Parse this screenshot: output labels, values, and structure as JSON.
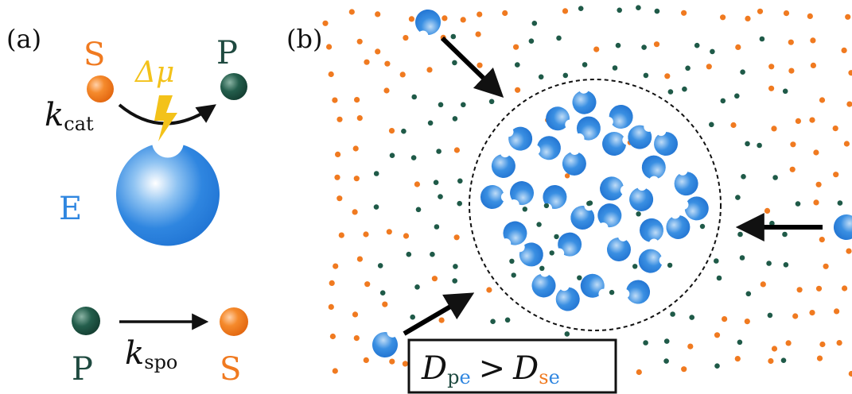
{
  "panel_a": {
    "label": "(a)",
    "substrate_label": "S",
    "product_label": "P",
    "enzyme_label": "E",
    "energy_label": "Δμ",
    "kcat_main": "k",
    "kcat_sub": "cat",
    "bottom_product_label": "P",
    "bottom_substrate_label": "S",
    "kspo_main": "k",
    "kspo_sub": "spo"
  },
  "panel_b": {
    "label": "(b)",
    "inequality": {
      "d1_main": "D",
      "d1_sub_p": "p",
      "d1_sub_e": "e",
      "op": ">",
      "d2_main": "D",
      "d2_sub_s": "s",
      "d2_sub_e": "e"
    }
  },
  "colors": {
    "enzyme": "#2f86e0",
    "substrate": "#f07a20",
    "product": "#1f5a48",
    "energy": "#f3c21a",
    "text_dark": "#1f4a40"
  }
}
